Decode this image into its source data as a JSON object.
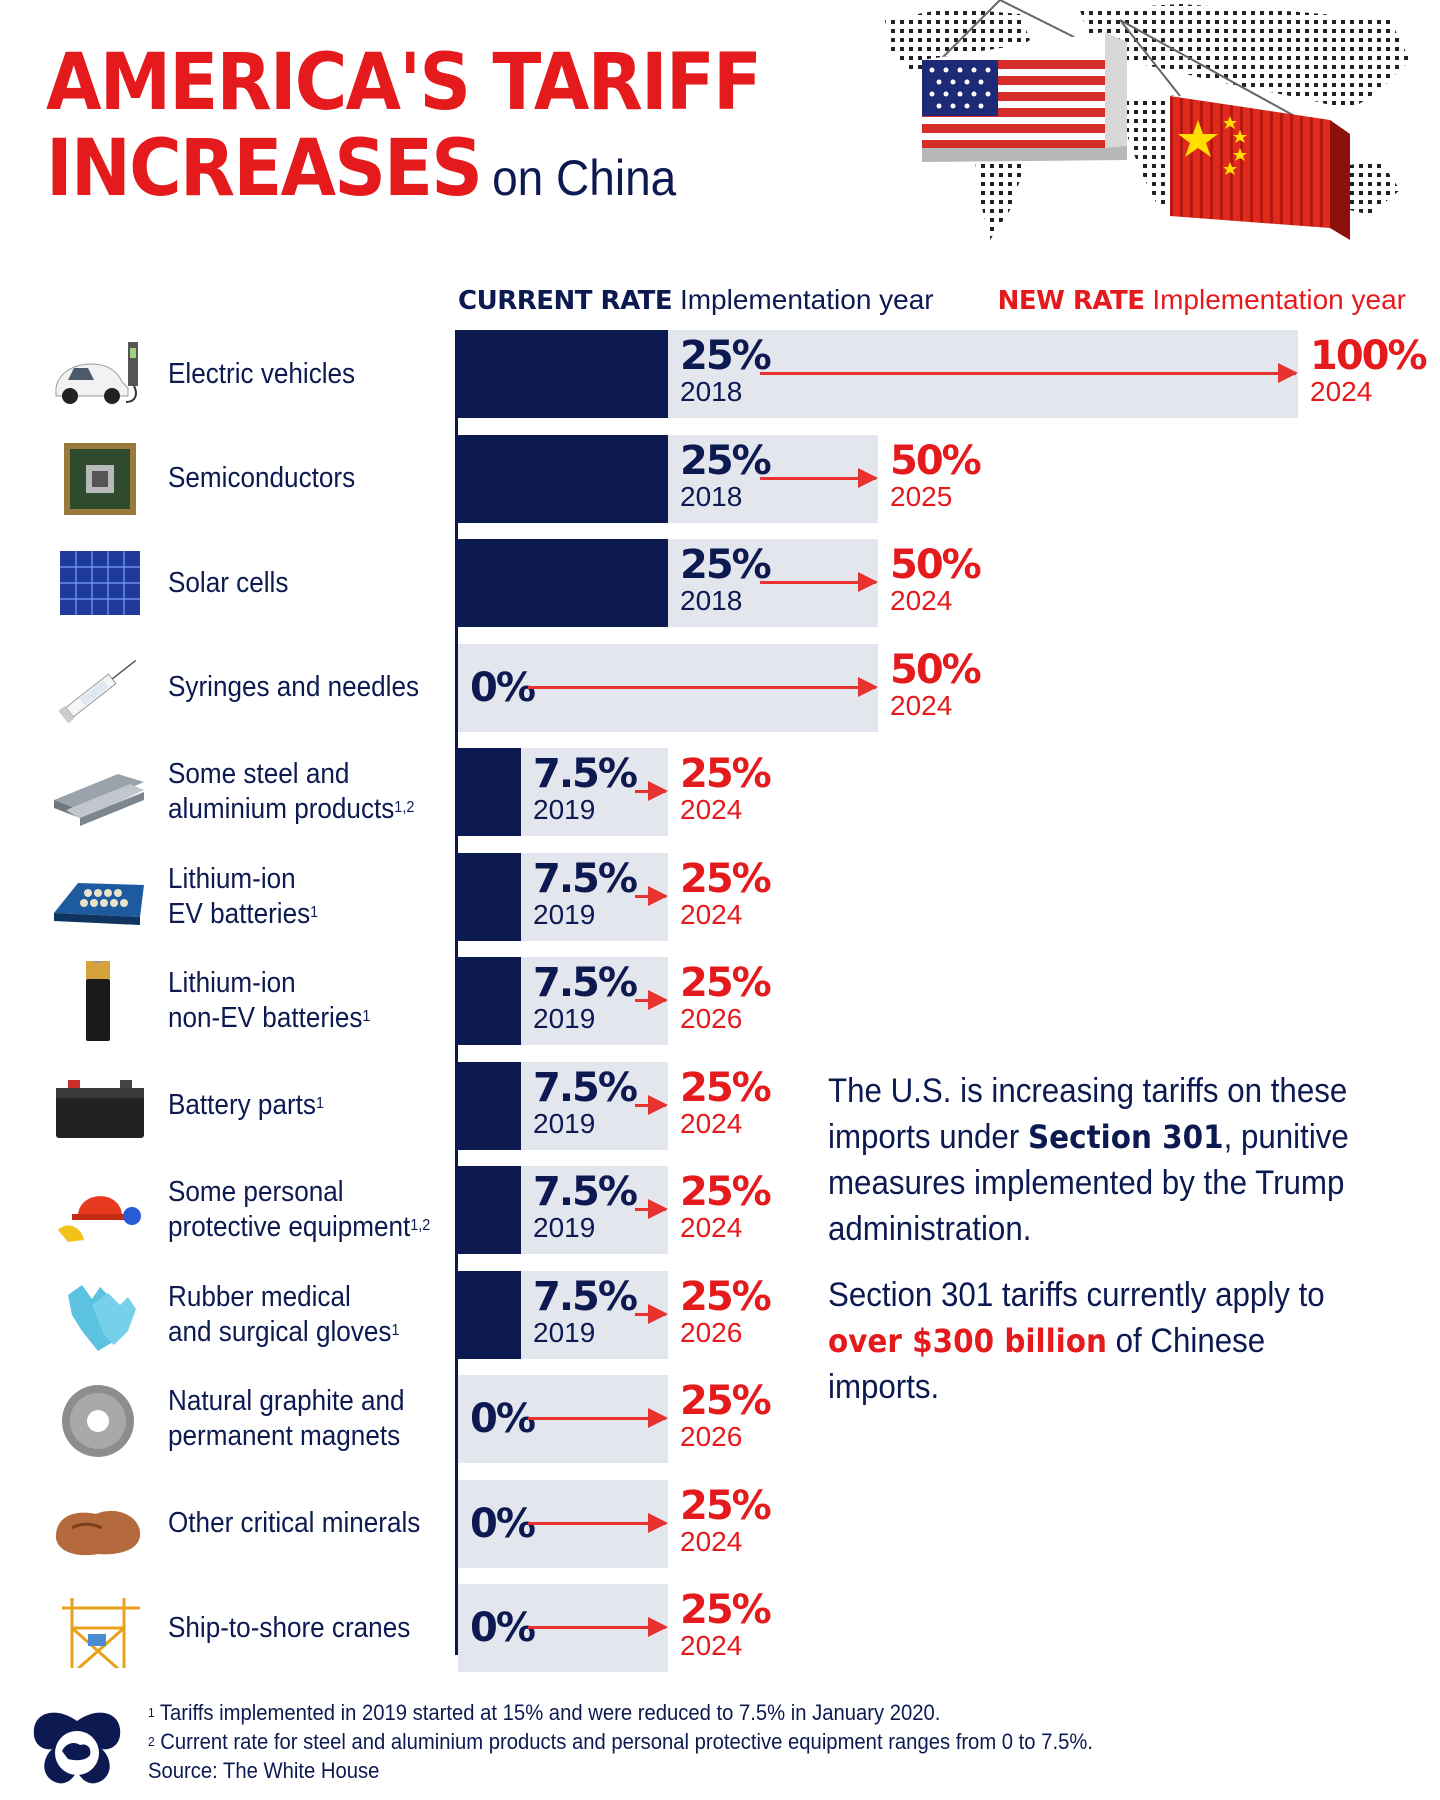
{
  "header": {
    "title_line1": "AMERICA'S TARIFF",
    "title_line2": "INCREASES",
    "subtitle": "on China"
  },
  "columns": {
    "current_bold": "CURRENT RATE",
    "current_sub": "Implementation year",
    "new_bold": "NEW RATE",
    "new_sub": "Implementation year"
  },
  "chart_data": {
    "type": "bar",
    "title": "AMERICA'S TARIFF INCREASES on China",
    "categories": [
      "Electric vehicles",
      "Semiconductors",
      "Solar cells",
      "Syringes and needles",
      "Some steel and aluminium products",
      "Lithium-ion EV batteries",
      "Lithium-ion non-EV batteries",
      "Battery parts",
      "Some personal protective equipment",
      "Rubber medical and surgical gloves",
      "Natural graphite and permanent magnets",
      "Other critical minerals",
      "Ship-to-shore cranes"
    ],
    "series": [
      {
        "name": "CURRENT RATE",
        "values": [
          25,
          25,
          25,
          0,
          7.5,
          7.5,
          7.5,
          7.5,
          7.5,
          7.5,
          0,
          0,
          0
        ]
      },
      {
        "name": "NEW RATE",
        "values": [
          100,
          50,
          50,
          50,
          25,
          25,
          25,
          25,
          25,
          25,
          25,
          25,
          25
        ]
      }
    ],
    "ylim": [
      0,
      100
    ],
    "rows": [
      {
        "label_lines": [
          "Electric vehicles"
        ],
        "sup": "",
        "icon": "electric-car-icon",
        "current": 25,
        "current_text": "25%",
        "current_year": "2018",
        "new": 100,
        "new_text": "100%",
        "new_year": "2024"
      },
      {
        "label_lines": [
          "Semiconductors"
        ],
        "sup": "",
        "icon": "microchip-icon",
        "current": 25,
        "current_text": "25%",
        "current_year": "2018",
        "new": 50,
        "new_text": "50%",
        "new_year": "2025"
      },
      {
        "label_lines": [
          "Solar cells"
        ],
        "sup": "",
        "icon": "solar-panel-icon",
        "current": 25,
        "current_text": "25%",
        "current_year": "2018",
        "new": 50,
        "new_text": "50%",
        "new_year": "2024"
      },
      {
        "label_lines": [
          "Syringes and needles"
        ],
        "sup": "",
        "icon": "syringe-icon",
        "current": 0,
        "current_text": "0%",
        "current_year": "",
        "new": 50,
        "new_text": "50%",
        "new_year": "2024"
      },
      {
        "label_lines": [
          "Some steel and",
          "aluminium products"
        ],
        "sup": "1,2",
        "icon": "steel-beams-icon",
        "current": 7.5,
        "current_text": "7.5%",
        "current_year": "2019",
        "new": 25,
        "new_text": "25%",
        "new_year": "2024"
      },
      {
        "label_lines": [
          "Lithium-ion",
          "EV batteries"
        ],
        "sup": "1",
        "icon": "ev-battery-pack-icon",
        "current": 7.5,
        "current_text": "7.5%",
        "current_year": "2019",
        "new": 25,
        "new_text": "25%",
        "new_year": "2024"
      },
      {
        "label_lines": [
          "Lithium-ion",
          "non-EV batteries"
        ],
        "sup": "1",
        "icon": "aa-battery-icon",
        "current": 7.5,
        "current_text": "7.5%",
        "current_year": "2019",
        "new": 25,
        "new_text": "25%",
        "new_year": "2026"
      },
      {
        "label_lines": [
          "Battery parts"
        ],
        "sup": "1",
        "icon": "car-battery-icon",
        "current": 7.5,
        "current_text": "7.5%",
        "current_year": "2019",
        "new": 25,
        "new_text": "25%",
        "new_year": "2024"
      },
      {
        "label_lines": [
          "Some personal",
          "protective equipment"
        ],
        "sup": "1,2",
        "icon": "safety-gear-icon",
        "current": 7.5,
        "current_text": "7.5%",
        "current_year": "2019",
        "new": 25,
        "new_text": "25%",
        "new_year": "2024"
      },
      {
        "label_lines": [
          "Rubber medical",
          "and surgical gloves"
        ],
        "sup": "1",
        "icon": "gloves-icon",
        "current": 7.5,
        "current_text": "7.5%",
        "current_year": "2019",
        "new": 25,
        "new_text": "25%",
        "new_year": "2026"
      },
      {
        "label_lines": [
          "Natural graphite and",
          "permanent magnets"
        ],
        "sup": "",
        "icon": "magnet-ring-icon",
        "current": 0,
        "current_text": "0%",
        "current_year": "",
        "new": 25,
        "new_text": "25%",
        "new_year": "2026"
      },
      {
        "label_lines": [
          "Other critical minerals"
        ],
        "sup": "",
        "icon": "mineral-rock-icon",
        "current": 0,
        "current_text": "0%",
        "current_year": "",
        "new": 25,
        "new_text": "25%",
        "new_year": "2024"
      },
      {
        "label_lines": [
          "Ship-to-shore cranes"
        ],
        "sup": "",
        "icon": "crane-icon",
        "current": 0,
        "current_text": "0%",
        "current_year": "",
        "new": 25,
        "new_text": "25%",
        "new_year": "2024"
      }
    ]
  },
  "annotation": {
    "p1_a": "The U.S. is increasing tariffs on these imports under ",
    "p1_b": "Section 301",
    "p1_c": ", punitive measures implemented by the Trump administration.",
    "p2_a": "Section 301 tariffs currently apply to ",
    "p2_b": "over $300 billion",
    "p2_c": " of Chinese imports."
  },
  "footnotes": {
    "n1_mark": "1",
    "n1": " Tariffs implemented in 2019 started at 15% and were reduced to 7.5% in January 2020.",
    "n2_mark": "2",
    "n2": " Current rate for steel and aluminium products and personal protective equipment ranges from 0 to 7.5%.",
    "source": "Source: The White House"
  },
  "colors": {
    "navy": "#0d1a4f",
    "red": "#e41a1c",
    "track": "#e4e6ee",
    "arrow": "#e8322f"
  }
}
